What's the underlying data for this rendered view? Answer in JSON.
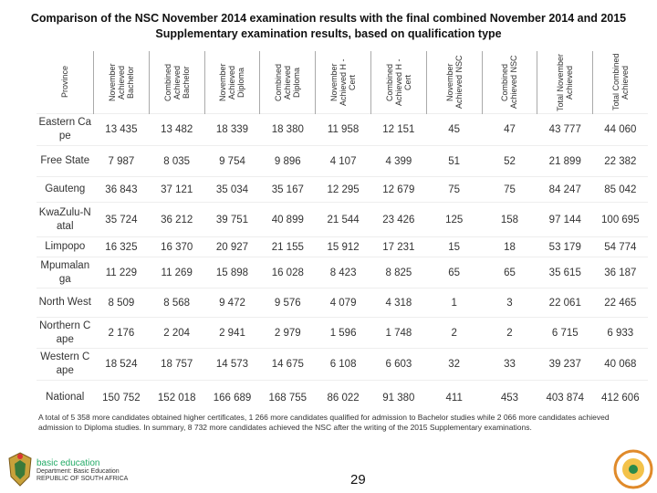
{
  "header": {
    "title": "Comparison of the NSC November 2014 examination results with the final combined November 2014 and 2015 Supplementary examination results, based on qualification type"
  },
  "table": {
    "columns": [
      "Province",
      "November Achieved Bachelor",
      "Combined Achieved Bachelor",
      "November Achieved Diploma",
      "Combined Achieved Diploma",
      "November Achieved H -Cert",
      "Combined Achieved H -Cert",
      "November Achieved NSC",
      "Combined Achieved NSC",
      "Total November Achieved",
      "Total Combined Achieved"
    ],
    "rows": [
      [
        "Eastern Cape",
        "13 435",
        "13 482",
        "18 339",
        "18 380",
        "11 958",
        "12 151",
        "45",
        "47",
        "43 777",
        "44 060"
      ],
      [
        "Free State",
        "7 987",
        "8 035",
        "9 754",
        "9 896",
        "4 107",
        "4 399",
        "51",
        "52",
        "21 899",
        "22 382"
      ],
      [
        "Gauteng",
        "36 843",
        "37 121",
        "35 034",
        "35 167",
        "12 295",
        "12 679",
        "75",
        "75",
        "84 247",
        "85 042"
      ],
      [
        "KwaZulu-Natal",
        "35 724",
        "36 212",
        "39 751",
        "40 899",
        "21 544",
        "23 426",
        "125",
        "158",
        "97 144",
        "100 695"
      ],
      [
        "Limpopo",
        "16 325",
        "16 370",
        "20 927",
        "21 155",
        "15 912",
        "17 231",
        "15",
        "18",
        "53 179",
        "54 774"
      ],
      [
        "Mpumalanga",
        "11 229",
        "11 269",
        "15 898",
        "16 028",
        "8 423",
        "8 825",
        "65",
        "65",
        "35 615",
        "36 187"
      ],
      [
        "North West",
        "8 509",
        "8 568",
        "9 472",
        "9 576",
        "4 079",
        "4 318",
        "1",
        "3",
        "22 061",
        "22 465"
      ],
      [
        "Northern Cape",
        "2 176",
        "2 204",
        "2 941",
        "2 979",
        "1 596",
        "1 748",
        "2",
        "2",
        "6 715",
        "6 933"
      ],
      [
        "Western Cape",
        "18 524",
        "18 757",
        "14 573",
        "14 675",
        "6 108",
        "6 603",
        "32",
        "33",
        "39 237",
        "40 068"
      ],
      [
        "National",
        "150 752",
        "152 018",
        "166 689",
        "168 755",
        "86 022",
        "91 380",
        "411",
        "453",
        "403 874",
        "412 606"
      ]
    ]
  },
  "footnote": "A total of 5 358 more candidates obtained higher certificates, 1 266 more candidates qualified for admission to Bachelor studies while 2 066 more candidates achieved admission to Diploma studies. In summary, 8 732 more candidates achieved the NSC after the writing of the 2015 Supplementary examinations.",
  "footer": {
    "logo_title": "basic education",
    "logo_line1": "Department: Basic Education",
    "logo_line2": "REPUBLIC OF SOUTH AFRICA",
    "page_number": "29"
  }
}
